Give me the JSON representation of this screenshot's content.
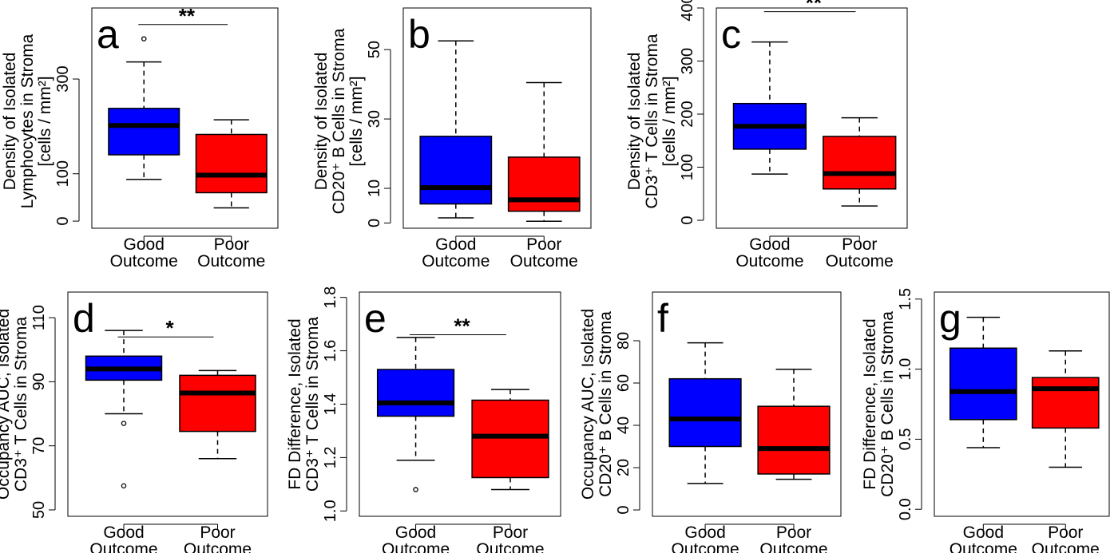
{
  "colors": {
    "good": "#0000FF",
    "poor": "#FF0000",
    "stroke": "#000000"
  },
  "chart_data": [
    {
      "type": "box",
      "letter": "a",
      "significance": "**",
      "ylabel": [
        "Density of Isolated",
        "Lymphocytes in Stroma",
        "[cells / mm²]"
      ],
      "categories": [
        [
          "Good",
          "Outcome"
        ],
        [
          "Poor",
          "Outcome"
        ]
      ],
      "yticks": [
        0,
        100,
        300
      ],
      "ylim": [
        -15,
        450
      ],
      "boxes": [
        {
          "group": "Good Outcome",
          "lower_whisker": 88,
          "q1": 140,
          "median": 202,
          "q3": 238,
          "upper_whisker": 336,
          "outliers": [
            385
          ]
        },
        {
          "group": "Poor Outcome",
          "lower_whisker": 28,
          "q1": 60,
          "median": 97,
          "q3": 183,
          "upper_whisker": 214,
          "outliers": []
        }
      ]
    },
    {
      "type": "box",
      "letter": "b",
      "significance": "",
      "ylabel": [
        "Density of Isolated",
        "CD20⁺ B Cells in Stroma",
        "[cells / mm²]"
      ],
      "categories": [
        [
          "Good",
          "Outcome"
        ],
        [
          "Poor",
          "Outcome"
        ]
      ],
      "yticks": [
        0,
        10,
        30,
        50
      ],
      "ylim": [
        -1.5,
        62
      ],
      "boxes": [
        {
          "group": "Good Outcome",
          "lower_whisker": 1.5,
          "q1": 5.5,
          "median": 10.2,
          "q3": 25,
          "upper_whisker": 52.5,
          "outliers": []
        },
        {
          "group": "Poor Outcome",
          "lower_whisker": 0.5,
          "q1": 3.4,
          "median": 6.7,
          "q3": 19,
          "upper_whisker": 40.5,
          "outliers": []
        }
      ]
    },
    {
      "type": "box",
      "letter": "c",
      "significance": "**",
      "ylabel": [
        "Density of Isolated",
        "CD3⁺ T Cells in Stroma",
        "[cells / mm²]"
      ],
      "categories": [
        [
          "Good",
          "Outcome"
        ],
        [
          "Poor",
          "Outcome"
        ]
      ],
      "yticks": [
        0,
        100,
        200,
        300,
        400
      ],
      "ylim": [
        -15,
        400
      ],
      "boxes": [
        {
          "group": "Good Outcome",
          "lower_whisker": 87,
          "q1": 134,
          "median": 177,
          "q3": 220,
          "upper_whisker": 336,
          "outliers": []
        },
        {
          "group": "Poor Outcome",
          "lower_whisker": 27,
          "q1": 59,
          "median": 88,
          "q3": 158,
          "upper_whisker": 193,
          "outliers": []
        }
      ]
    },
    {
      "type": "box",
      "letter": "d",
      "significance": "*",
      "ylabel": [
        "Occupancy AUC, Isolated",
        "CD3⁺ T Cells in Stroma"
      ],
      "categories": [
        [
          "Good",
          "Outcome"
        ],
        [
          "Poor",
          "Outcome"
        ]
      ],
      "yticks": [
        50,
        70,
        90,
        110
      ],
      "ylim": [
        48,
        118
      ],
      "boxes": [
        {
          "group": "Good Outcome",
          "lower_whisker": 80,
          "q1": 90.5,
          "median": 94,
          "q3": 98,
          "upper_whisker": 106,
          "outliers": [
            77,
            57.5
          ]
        },
        {
          "group": "Poor Outcome",
          "lower_whisker": 66,
          "q1": 74.5,
          "median": 86.5,
          "q3": 92,
          "upper_whisker": 93.5,
          "outliers": []
        }
      ]
    },
    {
      "type": "box",
      "letter": "e",
      "significance": "**",
      "ylabel": [
        "FD Difference, Isolated",
        "CD3⁺ T Cells in Stroma"
      ],
      "categories": [
        [
          "Good",
          "Outcome"
        ],
        [
          "Poor",
          "Outcome"
        ]
      ],
      "yticks": [
        1.0,
        1.2,
        1.4,
        1.6,
        1.8
      ],
      "ylim": [
        0.98,
        1.82
      ],
      "boxes": [
        {
          "group": "Good Outcome",
          "lower_whisker": 1.19,
          "q1": 1.355,
          "median": 1.405,
          "q3": 1.53,
          "upper_whisker": 1.65,
          "outliers": [
            1.08
          ]
        },
        {
          "group": "Poor Outcome",
          "lower_whisker": 1.08,
          "q1": 1.125,
          "median": 1.28,
          "q3": 1.415,
          "upper_whisker": 1.455,
          "outliers": []
        }
      ]
    },
    {
      "type": "box",
      "letter": "f",
      "significance": "",
      "ylabel": [
        "Occupancy AUC, Isolated",
        "CD20⁺ B Cells in Stroma"
      ],
      "categories": [
        [
          "Good",
          "Outcome"
        ],
        [
          "Poor",
          "Outcome"
        ]
      ],
      "yticks": [
        0,
        20,
        40,
        60,
        80
      ],
      "ylim": [
        -3,
        103
      ],
      "boxes": [
        {
          "group": "Good Outcome",
          "lower_whisker": 12.5,
          "q1": 30,
          "median": 43,
          "q3": 62,
          "upper_whisker": 79,
          "outliers": []
        },
        {
          "group": "Poor Outcome",
          "lower_whisker": 14.5,
          "q1": 17,
          "median": 29,
          "q3": 49,
          "upper_whisker": 66.5,
          "outliers": []
        }
      ]
    },
    {
      "type": "box",
      "letter": "g",
      "significance": "",
      "ylabel": [
        "FD Difference, Isolated",
        "CD20⁺ B Cells in Stroma"
      ],
      "categories": [
        [
          "Good",
          "Outcome"
        ],
        [
          "Poor",
          "Outcome"
        ]
      ],
      "yticks": [
        0.0,
        0.5,
        1.0,
        1.5
      ],
      "ylim": [
        -0.05,
        1.55
      ],
      "boxes": [
        {
          "group": "Good Outcome",
          "lower_whisker": 0.44,
          "q1": 0.64,
          "median": 0.84,
          "q3": 1.15,
          "upper_whisker": 1.37,
          "outliers": []
        },
        {
          "group": "Poor Outcome",
          "lower_whisker": 0.3,
          "q1": 0.58,
          "median": 0.86,
          "q3": 0.94,
          "upper_whisker": 1.13,
          "outliers": []
        }
      ]
    }
  ]
}
